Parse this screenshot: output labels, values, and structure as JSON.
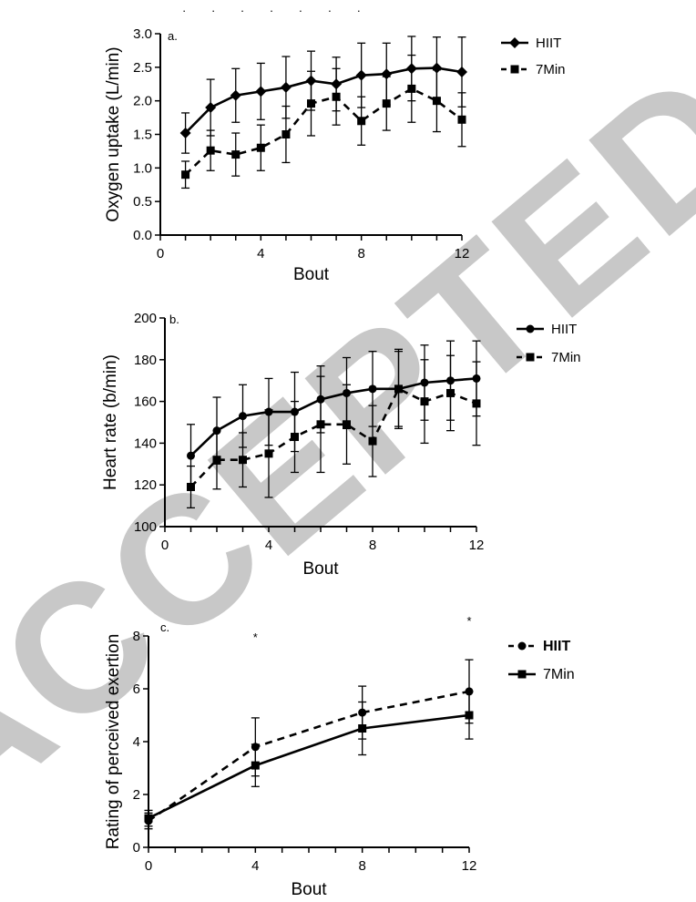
{
  "watermark": {
    "text": "ACCEPTED",
    "color": "#c8c8c8"
  },
  "chart_data": [
    {
      "type": "line",
      "panel_label": "a.",
      "xlabel": "Bout",
      "ylabel": "Oxygen uptake (L/min)",
      "xlim": [
        0,
        12
      ],
      "ylim": [
        0.0,
        3.0
      ],
      "xticks": [
        "0",
        "4",
        "8",
        "12"
      ],
      "xtick_values": [
        0,
        4,
        8,
        12
      ],
      "yticks": [
        "0.0",
        "0.5",
        "1.0",
        "1.5",
        "2.0",
        "2.5",
        "3.0"
      ],
      "ytick_values": [
        0.0,
        0.5,
        1.0,
        1.5,
        2.0,
        2.5,
        3.0
      ],
      "grid": false,
      "legend_position": "right",
      "significance_marks": "·  ·  ·  ·  ·  ·  ·",
      "series": [
        {
          "name": "HIIT",
          "marker": "diamond",
          "style": "solid",
          "x": [
            1,
            2,
            3,
            4,
            5,
            6,
            7,
            8,
            9,
            10,
            11,
            12
          ],
          "y": [
            1.52,
            1.9,
            2.08,
            2.14,
            2.2,
            2.3,
            2.25,
            2.38,
            2.4,
            2.48,
            2.49,
            2.43
          ],
          "err": [
            0.3,
            0.42,
            0.4,
            0.42,
            0.46,
            0.44,
            0.4,
            0.48,
            0.46,
            0.48,
            0.46,
            0.52
          ]
        },
        {
          "name": "7Min",
          "marker": "square",
          "style": "dashed",
          "x": [
            1,
            2,
            3,
            4,
            5,
            6,
            7,
            8,
            9,
            10,
            11,
            12
          ],
          "y": [
            0.9,
            1.26,
            1.2,
            1.3,
            1.5,
            1.96,
            2.06,
            1.7,
            1.96,
            2.18,
            2.0,
            1.72
          ],
          "err": [
            0.2,
            0.3,
            0.32,
            0.34,
            0.42,
            0.48,
            0.42,
            0.36,
            0.4,
            0.5,
            0.46,
            0.4
          ]
        }
      ]
    },
    {
      "type": "line",
      "panel_label": "b.",
      "xlabel": "Bout",
      "ylabel": "Heart rate (b/min)",
      "xlim": [
        0,
        12
      ],
      "ylim": [
        100,
        200
      ],
      "xticks": [
        "0",
        "4",
        "8",
        "12"
      ],
      "xtick_values": [
        0,
        4,
        8,
        12
      ],
      "yticks": [
        "100",
        "120",
        "140",
        "160",
        "180",
        "200"
      ],
      "ytick_values": [
        100,
        120,
        140,
        160,
        180,
        200
      ],
      "grid": false,
      "legend_position": "right",
      "series": [
        {
          "name": "HIIT",
          "marker": "circle",
          "style": "solid",
          "x": [
            1,
            2,
            3,
            4,
            5,
            6,
            7,
            8,
            9,
            10,
            11,
            12
          ],
          "y": [
            134,
            146,
            153,
            155,
            155,
            161,
            164,
            166,
            166,
            169,
            170,
            171
          ],
          "err": [
            15,
            16,
            15,
            16,
            19,
            16,
            17,
            18,
            18,
            18,
            19,
            18
          ]
        },
        {
          "name": "7Min",
          "marker": "square",
          "style": "dashed",
          "x": [
            1,
            2,
            3,
            4,
            5,
            6,
            7,
            8,
            9,
            10,
            11,
            12
          ],
          "y": [
            119,
            132,
            132,
            135,
            143,
            149,
            149,
            141,
            166,
            160,
            164,
            159
          ],
          "err": [
            10,
            14,
            13,
            21,
            17,
            23,
            19,
            17,
            19,
            20,
            18,
            20
          ]
        }
      ]
    },
    {
      "type": "line",
      "panel_label": "c.",
      "xlabel": "Bout",
      "ylabel": "Rating of perceived exertion",
      "xlim": [
        0,
        12
      ],
      "ylim": [
        0,
        8
      ],
      "xticks": [
        "0",
        "4",
        "8",
        "12"
      ],
      "xtick_values": [
        0,
        4,
        8,
        12
      ],
      "yticks": [
        "0",
        "2",
        "4",
        "6",
        "8"
      ],
      "ytick_values": [
        0,
        2,
        4,
        6,
        8
      ],
      "grid": false,
      "legend_position": "right",
      "significance_marks": [
        {
          "text": "*",
          "x": 4,
          "y": 7.8
        },
        {
          "text": "*",
          "x": 12,
          "y": 8.5
        }
      ],
      "series": [
        {
          "name": "HIIT",
          "marker": "circle",
          "style": "dashed",
          "x": [
            0,
            4,
            8,
            12
          ],
          "y": [
            1.0,
            3.8,
            5.1,
            5.9
          ],
          "err": [
            0.3,
            1.1,
            1.0,
            1.2
          ]
        },
        {
          "name": "7Min",
          "marker": "square",
          "style": "solid",
          "x": [
            0,
            4,
            8,
            12
          ],
          "y": [
            1.1,
            3.1,
            4.5,
            5.0
          ],
          "err": [
            0.3,
            0.8,
            1.0,
            0.9
          ]
        }
      ]
    }
  ]
}
